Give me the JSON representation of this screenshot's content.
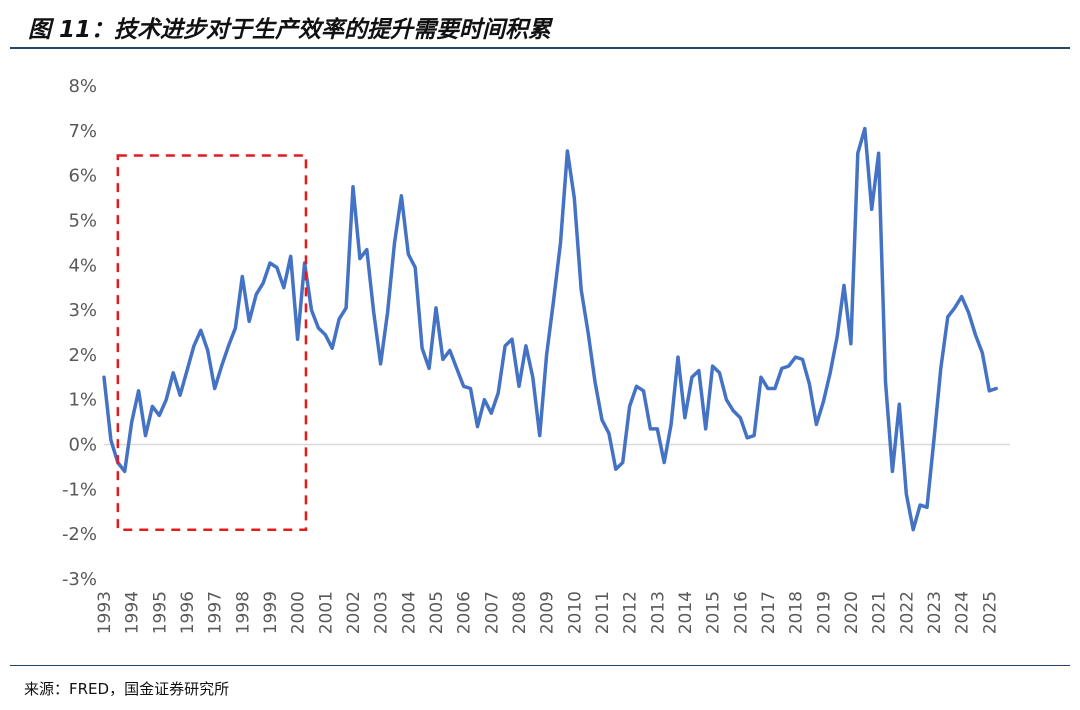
{
  "title": "图 11：技术进步对于生产效率的提升需要时间积累",
  "source": "来源：FRED，国金证券研究所",
  "colors": {
    "line": "#4472c4",
    "highlight": "#e8191e",
    "axis": "#d9d9d9",
    "rule": "#24456b"
  },
  "chart_data": {
    "type": "line",
    "ylim": [
      -3,
      8
    ],
    "yticks": [
      -3,
      -2,
      -1,
      0,
      1,
      2,
      3,
      4,
      5,
      6,
      7,
      8
    ],
    "ytick_labels": [
      "-3%",
      "-2%",
      "-1%",
      "0%",
      "1%",
      "2%",
      "3%",
      "4%",
      "5%",
      "6%",
      "7%",
      "8%"
    ],
    "xlim": [
      1993,
      2025.75
    ],
    "x_tick_labels": [
      "1993",
      "1994",
      "1995",
      "1996",
      "1997",
      "1998",
      "1999",
      "2000",
      "2001",
      "2002",
      "2003",
      "2004",
      "2005",
      "2006",
      "2007",
      "2008",
      "2009",
      "2010",
      "2011",
      "2012",
      "2013",
      "2014",
      "2015",
      "2016",
      "2017",
      "2018",
      "2019",
      "2020",
      "2021",
      "2022",
      "2023",
      "2024",
      "2025"
    ],
    "series": [
      {
        "x": [
          1993.0,
          1993.25,
          1993.5,
          1993.75,
          1994.0,
          1994.25,
          1994.5,
          1994.75,
          1995.0,
          1995.25,
          1995.5,
          1995.75,
          1996.0,
          1996.25,
          1996.5,
          1996.75,
          1997.0,
          1997.25,
          1997.5,
          1997.75,
          1998.0,
          1998.25,
          1998.5,
          1998.75,
          1999.0,
          1999.25,
          1999.5,
          1999.75,
          2000.0,
          2000.25,
          2000.5,
          2000.75,
          2001.0,
          2001.25,
          2001.5,
          2001.75,
          2002.0,
          2002.25,
          2002.5,
          2002.75,
          2003.0,
          2003.25,
          2003.5,
          2003.75,
          2004.0,
          2004.25,
          2004.5,
          2004.75,
          2005.0,
          2005.25,
          2005.5,
          2005.75,
          2006.0,
          2006.25,
          2006.5,
          2006.75,
          2007.0,
          2007.25,
          2007.5,
          2007.75,
          2008.0,
          2008.25,
          2008.5,
          2008.75,
          2009.0,
          2009.25,
          2009.5,
          2009.75,
          2010.0,
          2010.25,
          2010.5,
          2010.75,
          2011.0,
          2011.25,
          2011.5,
          2011.75,
          2012.0,
          2012.25,
          2012.5,
          2012.75,
          2013.0,
          2013.25,
          2013.5,
          2013.75,
          2014.0,
          2014.25,
          2014.5,
          2014.75,
          2015.0,
          2015.25,
          2015.5,
          2015.75,
          2016.0,
          2016.25,
          2016.5,
          2016.75,
          2017.0,
          2017.25,
          2017.5,
          2017.75,
          2018.0,
          2018.25,
          2018.5,
          2018.75,
          2019.0,
          2019.25,
          2019.5,
          2019.75,
          2020.0,
          2020.25,
          2020.5,
          2020.75,
          2021.0,
          2021.25,
          2021.5,
          2021.75,
          2022.0,
          2022.25,
          2022.5,
          2022.75,
          2023.0,
          2023.25,
          2023.5,
          2023.75,
          2024.0,
          2024.25,
          2024.5,
          2024.75,
          2025.0,
          2025.25
        ],
        "y": [
          1.5,
          0.1,
          -0.4,
          -0.6,
          0.5,
          1.2,
          0.2,
          0.85,
          0.65,
          1.0,
          1.6,
          1.1,
          1.65,
          2.2,
          2.55,
          2.1,
          1.25,
          1.75,
          2.2,
          2.6,
          3.75,
          2.75,
          3.35,
          3.6,
          4.05,
          3.95,
          3.5,
          4.2,
          2.35,
          4.05,
          3.0,
          2.6,
          2.45,
          2.15,
          2.8,
          3.05,
          5.75,
          4.15,
          4.35,
          2.95,
          1.8,
          2.95,
          4.5,
          5.55,
          4.25,
          3.95,
          2.15,
          1.7,
          3.05,
          1.9,
          2.1,
          1.7,
          1.3,
          1.25,
          0.4,
          1.0,
          0.7,
          1.15,
          2.2,
          2.35,
          1.3,
          2.2,
          1.5,
          0.2,
          2.0,
          3.2,
          4.5,
          6.55,
          5.5,
          3.45,
          2.5,
          1.4,
          0.55,
          0.25,
          -0.55,
          -0.4,
          0.85,
          1.3,
          1.2,
          0.35,
          0.35,
          -0.4,
          0.45,
          1.95,
          0.6,
          1.5,
          1.65,
          0.35,
          1.75,
          1.6,
          1.0,
          0.75,
          0.6,
          0.15,
          0.2,
          1.5,
          1.25,
          1.25,
          1.7,
          1.75,
          1.95,
          1.9,
          1.35,
          0.45,
          0.95,
          1.6,
          2.4,
          3.55,
          2.25,
          6.5,
          7.05,
          5.25,
          6.5,
          1.4,
          -0.6,
          0.9,
          -1.1,
          -1.9,
          -1.35,
          -1.4,
          0.1,
          1.7,
          2.85,
          3.05,
          3.3,
          2.95,
          2.45,
          2.05,
          1.2,
          1.25
        ]
      }
    ],
    "highlight_box": {
      "x0": 1993.5,
      "x1": 2000.3,
      "y0": -1.9,
      "y1": 6.45
    }
  }
}
